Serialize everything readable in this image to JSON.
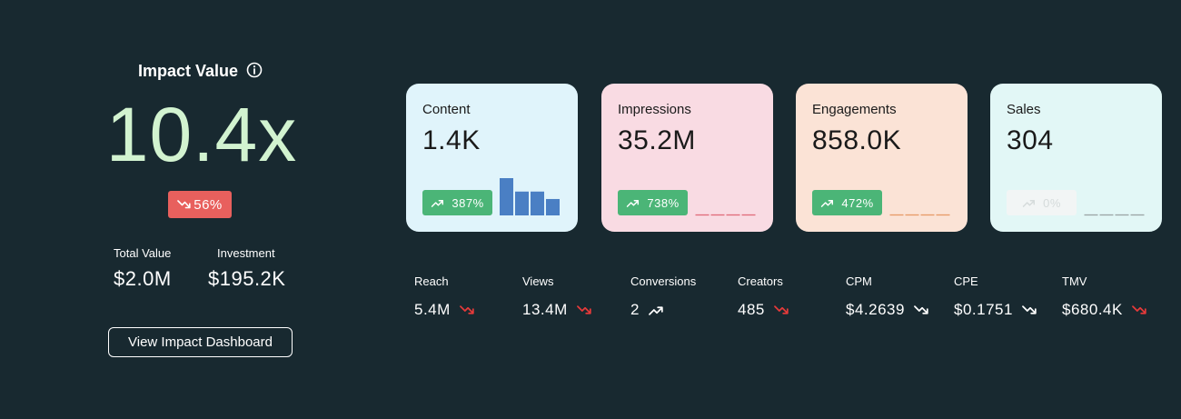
{
  "impact": {
    "title": "Impact Value",
    "value": "10.4x",
    "change": "56%",
    "change_direction": "down",
    "total_value_label": "Total Value",
    "total_value": "$2.0M",
    "investment_label": "Investment",
    "investment": "$195.2K",
    "button_label": "View Impact Dashboard"
  },
  "cards": [
    {
      "label": "Content",
      "value": "1.4K",
      "change": "387%",
      "trend": "up",
      "bg": "#e0f4fb",
      "spark_color": "#4a7fc4",
      "spark_type": "bars",
      "spark_values": [
        1.0,
        0.64,
        0.64,
        0.44
      ]
    },
    {
      "label": "Impressions",
      "value": "35.2M",
      "change": "738%",
      "trend": "up",
      "bg": "#f9dbe3",
      "spark_color": "#df6a79",
      "spark_type": "flat"
    },
    {
      "label": "Engagements",
      "value": "858.0K",
      "change": "472%",
      "trend": "up",
      "bg": "#fbe3d6",
      "spark_color": "#e69a67",
      "spark_type": "flat"
    },
    {
      "label": "Sales",
      "value": "304",
      "change": "0%",
      "trend": "flat",
      "bg": "#e2f7f6",
      "spark_color": "#9aa4a4",
      "spark_type": "flat"
    }
  ],
  "metrics": [
    {
      "label": "Reach",
      "value": "5.4M",
      "trend": "down"
    },
    {
      "label": "Views",
      "value": "13.4M",
      "trend": "down"
    },
    {
      "label": "Conversions",
      "value": "2",
      "trend": "up"
    },
    {
      "label": "Creators",
      "value": "485",
      "trend": "down"
    },
    {
      "label": "CPM",
      "value": "$4.2639",
      "trend": "down-neutral"
    },
    {
      "label": "CPE",
      "value": "$0.1751",
      "trend": "down-neutral"
    },
    {
      "label": "TMV",
      "value": "$680.4K",
      "trend": "down"
    }
  ],
  "colors": {
    "background": "#182930",
    "impact_value": "#d2f3d0",
    "negative": "#e8605d",
    "positive": "#4bb577",
    "trend_down": "#e63a3a",
    "trend_neutral": "#ffffff"
  },
  "icons": {
    "info": "info-circle-icon",
    "trend_up": "trending-up-icon",
    "trend_down": "trending-down-icon"
  }
}
